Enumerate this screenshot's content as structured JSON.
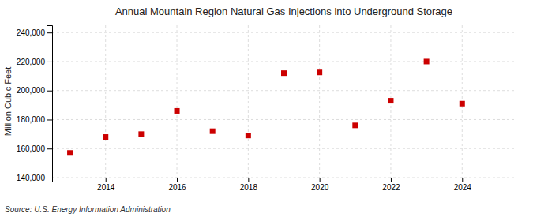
{
  "chart_data": {
    "type": "scatter",
    "title": "Annual Mountain Region Natural Gas Injections into Underground Storage",
    "ylabel": "Million Cubic Feet",
    "annotations": [
      "Source: U.S. Energy Information Administration"
    ],
    "x": [
      2013,
      2014,
      2015,
      2016,
      2017,
      2018,
      2019,
      2020,
      2021,
      2022,
      2023,
      2024
    ],
    "values": [
      157000,
      168000,
      170000,
      186000,
      172000,
      169000,
      212000,
      212500,
      176000,
      193000,
      220000,
      191000
    ],
    "color": "#cc0000",
    "marker": "square",
    "xlim": [
      2012.5,
      2025.5
    ],
    "xticks": [
      2014,
      2016,
      2018,
      2020,
      2022,
      2024
    ],
    "ylim": [
      140000,
      245000
    ],
    "yticks": [
      {
        "value": 140000,
        "label": "140,000"
      },
      {
        "value": 160000,
        "label": "160,000"
      },
      {
        "value": 180000,
        "label": "180,000"
      },
      {
        "value": 200000,
        "label": "200,000"
      },
      {
        "value": 220000,
        "label": "220,000"
      },
      {
        "value": 240000,
        "label": "240,000"
      }
    ],
    "grid": true
  }
}
